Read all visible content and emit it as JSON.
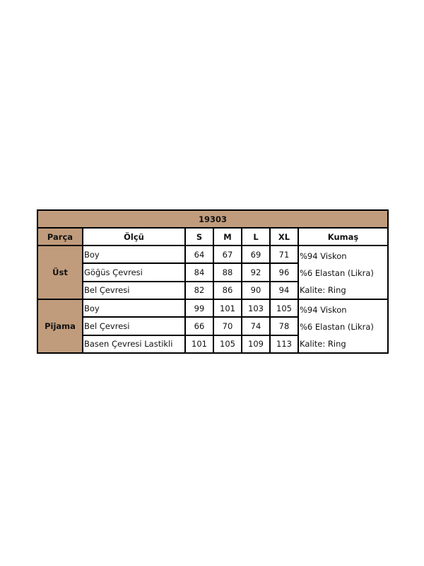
{
  "title": "19303",
  "headers": [
    "Parça",
    "Ölçü",
    "S",
    "M",
    "L",
    "XL",
    "Kumaş"
  ],
  "groups": [
    {
      "part": "Üst",
      "rows": [
        {
          "measure": "Boy",
          "values": [
            "64",
            "67",
            "69",
            "71"
          ]
        },
        {
          "measure": "Göğüs Çevresi",
          "values": [
            "84",
            "88",
            "92",
            "96"
          ]
        },
        {
          "measure": "Bel Çevresi",
          "values": [
            "82",
            "86",
            "90",
            "94"
          ]
        }
      ],
      "fabric": [
        "%94 Viskon",
        "%6 Elastan (Likra)",
        "Kalite: Ring"
      ]
    },
    {
      "part": "Pijama",
      "rows": [
        {
          "measure": "Boy",
          "values": [
            "99",
            "101",
            "103",
            "105"
          ]
        },
        {
          "measure": "Bel Çevresi",
          "values": [
            "66",
            "70",
            "74",
            "78"
          ]
        },
        {
          "measure": "Basen Çevresi Lastikli",
          "values": [
            "101",
            "105",
            "109",
            "113"
          ]
        }
      ],
      "fabric": [
        "%94 Viskon",
        "%6 Elastan (Likra)",
        "Kalite: Ring"
      ]
    }
  ],
  "colors": {
    "header_bg": "#c09c7c",
    "border": "#000000"
  }
}
